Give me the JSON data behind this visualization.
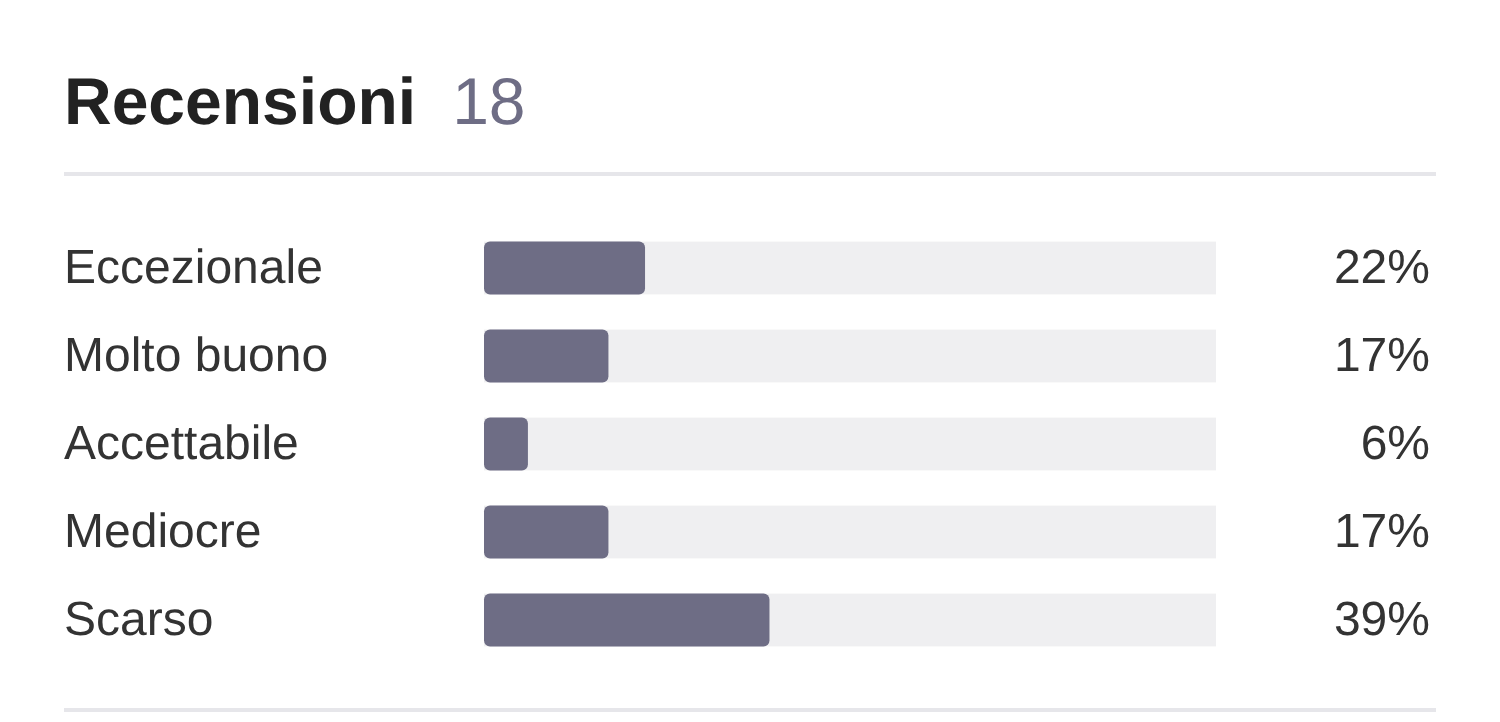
{
  "chart_data": {
    "type": "bar",
    "orientation": "horizontal",
    "title": "Recensioni",
    "subtitle": "18",
    "categories": [
      "Eccezionale",
      "Molto buono",
      "Accettabile",
      "Mediocre",
      "Scarso"
    ],
    "values": [
      22,
      17,
      6,
      17,
      39
    ],
    "value_labels": [
      "22%",
      "17%",
      "6%",
      "17%",
      "39%"
    ],
    "color": "#6e6d85",
    "xlim": [
      0,
      100
    ]
  }
}
